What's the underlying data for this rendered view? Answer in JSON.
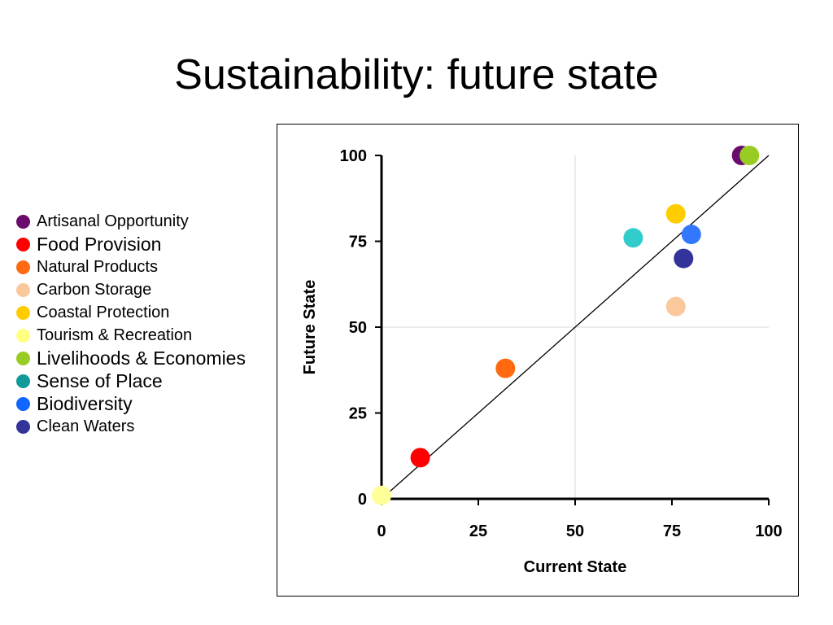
{
  "slide": {
    "title": "Sustainability: future state"
  },
  "legend": {
    "items": [
      {
        "label": "Artisanal Opportunity",
        "color": "#6a0b6e",
        "size": "small"
      },
      {
        "label": "Food Provision",
        "color": "#ff0000",
        "size": "large"
      },
      {
        "label": "Natural Products",
        "color": "#ff6a10",
        "size": "small"
      },
      {
        "label": "Carbon Storage",
        "color": "#fbc89c",
        "size": "small"
      },
      {
        "label": "Coastal Protection",
        "color": "#ffcc00",
        "size": "small"
      },
      {
        "label": "Tourism & Recreation",
        "color": "#ffff80",
        "size": "small"
      },
      {
        "label": "Livelihoods & Economies",
        "color": "#99cc22",
        "size": "large"
      },
      {
        "label": "Sense of Place",
        "color": "#109a9a",
        "size": "large"
      },
      {
        "label": "Biodiversity",
        "color": "#1166ff",
        "size": "large"
      },
      {
        "label": "Clean Waters",
        "color": "#333399",
        "size": "small"
      }
    ]
  },
  "chart_data": {
    "type": "scatter",
    "xlabel": "Current State",
    "ylabel": "Future State",
    "xlim": [
      0,
      100
    ],
    "ylim": [
      0,
      100
    ],
    "xticks": [
      "0",
      "25",
      "50",
      "75",
      "100"
    ],
    "yticks": [
      "0",
      "25",
      "50",
      "75",
      "100"
    ],
    "grid": "x=50 and y=50 reference lines",
    "reference_line": "y = x",
    "points": [
      {
        "name": "Tourism & Recreation",
        "x": 0,
        "y": 1,
        "color": "#ffff99"
      },
      {
        "name": "Food Provision",
        "x": 10,
        "y": 12,
        "color": "#ff0000"
      },
      {
        "name": "Natural Products",
        "x": 32,
        "y": 38,
        "color": "#ff6a10"
      },
      {
        "name": "Sense of Place",
        "x": 65,
        "y": 76,
        "color": "#33cccc"
      },
      {
        "name": "Coastal Protection",
        "x": 76,
        "y": 83,
        "color": "#ffcc00"
      },
      {
        "name": "Carbon Storage",
        "x": 76,
        "y": 56,
        "color": "#fbc89c"
      },
      {
        "name": "Clean Waters",
        "x": 78,
        "y": 70,
        "color": "#333399"
      },
      {
        "name": "Biodiversity",
        "x": 80,
        "y": 77,
        "color": "#3377ff"
      },
      {
        "name": "Artisanal Opportunity",
        "x": 93,
        "y": 100,
        "color": "#6a0b6e"
      },
      {
        "name": "Livelihoods & Economies",
        "x": 95,
        "y": 100,
        "color": "#99cc22"
      }
    ]
  }
}
